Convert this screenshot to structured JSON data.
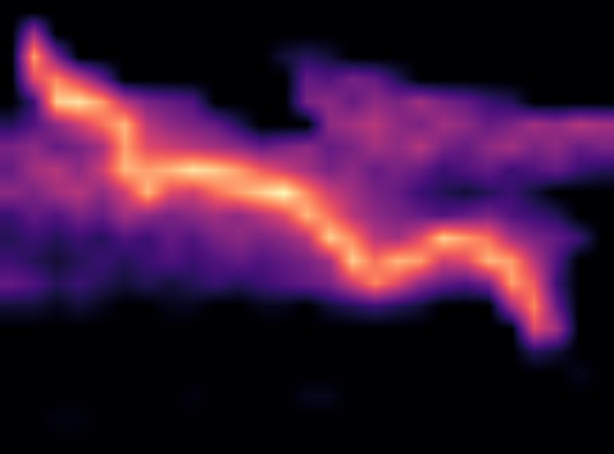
{
  "chart_data": {
    "type": "heatmap",
    "tick_labels": false,
    "cells": [
      [
        0,
        0,
        0,
        0,
        0,
        0,
        0,
        0,
        0,
        0,
        0,
        0,
        0,
        0,
        0,
        0,
        0,
        0,
        0,
        0,
        0,
        0,
        0,
        0,
        0,
        0,
        0
      ],
      [
        0,
        45,
        0,
        0,
        0,
        0,
        0,
        0,
        0,
        0,
        0,
        0,
        0,
        0,
        0,
        0,
        0,
        0,
        0,
        0,
        0,
        0,
        0,
        0,
        0,
        0,
        0
      ],
      [
        0,
        80,
        35,
        0,
        0,
        0,
        0,
        0,
        0,
        0,
        0,
        0,
        10,
        15,
        10,
        0,
        0,
        0,
        0,
        0,
        0,
        0,
        0,
        0,
        0,
        0,
        0
      ],
      [
        0,
        60,
        75,
        55,
        30,
        0,
        0,
        0,
        0,
        0,
        0,
        0,
        0,
        30,
        25,
        35,
        30,
        15,
        0,
        0,
        0,
        0,
        0,
        0,
        0,
        0,
        0
      ],
      [
        0,
        20,
        90,
        95,
        80,
        50,
        35,
        30,
        25,
        0,
        0,
        0,
        0,
        35,
        40,
        30,
        40,
        35,
        45,
        35,
        30,
        20,
        15,
        0,
        0,
        0,
        0
      ],
      [
        15,
        25,
        40,
        55,
        70,
        85,
        50,
        40,
        35,
        30,
        15,
        0,
        0,
        0,
        40,
        45,
        50,
        40,
        35,
        45,
        40,
        30,
        35,
        45,
        40,
        50,
        45
      ],
      [
        35,
        40,
        30,
        35,
        45,
        80,
        60,
        55,
        50,
        45,
        40,
        30,
        35,
        40,
        30,
        35,
        45,
        40,
        50,
        35,
        30,
        40,
        45,
        35,
        40,
        30,
        35
      ],
      [
        30,
        45,
        50,
        40,
        55,
        85,
        80,
        85,
        95,
        90,
        80,
        65,
        55,
        45,
        35,
        40,
        30,
        35,
        30,
        20,
        25,
        30,
        20,
        25,
        30,
        20,
        15
      ],
      [
        40,
        35,
        45,
        50,
        40,
        55,
        85,
        60,
        55,
        70,
        80,
        90,
        100,
        75,
        55,
        45,
        35,
        30,
        20,
        15,
        10,
        15,
        20,
        10,
        0,
        0,
        0
      ],
      [
        20,
        30,
        25,
        35,
        30,
        45,
        40,
        35,
        40,
        45,
        40,
        50,
        60,
        85,
        70,
        50,
        40,
        35,
        30,
        25,
        30,
        35,
        25,
        20,
        15,
        0,
        0
      ],
      [
        15,
        20,
        15,
        20,
        15,
        25,
        20,
        30,
        25,
        35,
        40,
        35,
        40,
        50,
        90,
        75,
        50,
        45,
        60,
        90,
        80,
        70,
        45,
        35,
        30,
        20,
        0
      ],
      [
        20,
        15,
        10,
        15,
        20,
        15,
        20,
        25,
        20,
        25,
        30,
        25,
        30,
        35,
        45,
        90,
        70,
        85,
        80,
        55,
        60,
        85,
        80,
        50,
        25,
        0,
        0
      ],
      [
        30,
        25,
        15,
        20,
        15,
        10,
        15,
        10,
        15,
        20,
        15,
        20,
        25,
        30,
        35,
        55,
        75,
        60,
        40,
        30,
        25,
        35,
        80,
        65,
        20,
        0,
        0
      ],
      [
        10,
        10,
        5,
        10,
        5,
        0,
        0,
        5,
        5,
        0,
        0,
        5,
        5,
        0,
        10,
        15,
        20,
        15,
        10,
        0,
        0,
        0,
        45,
        75,
        30,
        0,
        0
      ],
      [
        0,
        0,
        0,
        0,
        0,
        0,
        0,
        0,
        0,
        0,
        0,
        0,
        0,
        0,
        0,
        0,
        0,
        0,
        0,
        0,
        0,
        0,
        0,
        60,
        45,
        0,
        0
      ],
      [
        0,
        0,
        0,
        0,
        0,
        0,
        0,
        0,
        0,
        0,
        0,
        0,
        0,
        0,
        0,
        0,
        0,
        0,
        0,
        0,
        0,
        0,
        0,
        15,
        10,
        0,
        0
      ],
      [
        0,
        0,
        0,
        0,
        0,
        0,
        0,
        0,
        0,
        0,
        0,
        0,
        0,
        0,
        0,
        0,
        0,
        0,
        0,
        0,
        0,
        0,
        0,
        0,
        0,
        5,
        0
      ],
      [
        0,
        0,
        0,
        0,
        0,
        0,
        0,
        0,
        3,
        0,
        0,
        0,
        0,
        5,
        5,
        0,
        0,
        0,
        0,
        0,
        0,
        0,
        0,
        0,
        0,
        0,
        0
      ],
      [
        0,
        0,
        3,
        3,
        0,
        0,
        0,
        0,
        0,
        0,
        0,
        0,
        0,
        0,
        0,
        0,
        0,
        0,
        0,
        0,
        0,
        0,
        0,
        0,
        0,
        0,
        0
      ],
      [
        0,
        0,
        0,
        0,
        0,
        0,
        0,
        0,
        0,
        0,
        0,
        0,
        0,
        0,
        0,
        0,
        0,
        0,
        0,
        0,
        0,
        0,
        0,
        0,
        0,
        0,
        0
      ]
    ]
  }
}
